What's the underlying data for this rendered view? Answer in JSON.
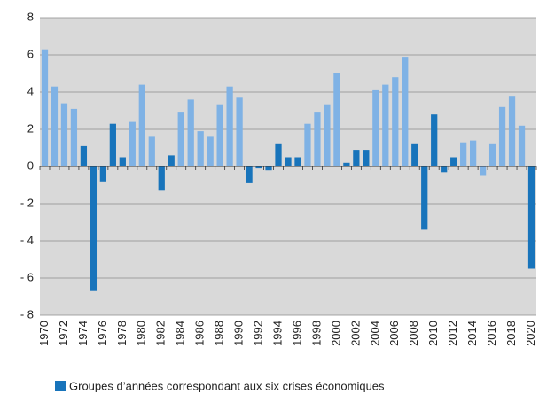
{
  "chart_data": {
    "type": "bar",
    "categories": [
      "1970",
      null,
      "1972",
      null,
      "1974",
      null,
      "1976",
      null,
      "1978",
      null,
      "1980",
      null,
      "1982",
      null,
      "1984",
      null,
      "1986",
      null,
      "1988",
      null,
      "1990",
      null,
      "1992",
      null,
      "1994",
      null,
      "1996",
      null,
      "1998",
      null,
      "2000",
      null,
      "2002",
      null,
      "2004",
      null,
      "2006",
      null,
      "2008",
      null,
      "2010",
      null,
      "2012",
      null,
      "2014",
      null,
      "2016",
      null,
      "2018",
      null,
      "2020"
    ],
    "values": [
      6.3,
      4.3,
      3.4,
      3.1,
      1.1,
      -6.7,
      -0.8,
      2.3,
      0.5,
      2.4,
      4.4,
      1.6,
      -1.3,
      0.6,
      2.9,
      3.6,
      1.9,
      1.6,
      3.3,
      4.3,
      3.7,
      -0.9,
      -0.1,
      -0.2,
      1.2,
      0.5,
      0.5,
      2.3,
      2.9,
      3.3,
      5.0,
      0.2,
      0.9,
      0.9,
      4.1,
      4.4,
      4.8,
      5.9,
      1.2,
      -3.4,
      2.8,
      -0.3,
      0.5,
      1.3,
      1.4,
      -0.5,
      1.2,
      3.2,
      3.8,
      2.2,
      -5.5
    ],
    "crisis": [
      false,
      false,
      false,
      false,
      true,
      true,
      true,
      true,
      true,
      false,
      false,
      false,
      true,
      true,
      false,
      false,
      false,
      false,
      false,
      false,
      false,
      true,
      true,
      true,
      true,
      true,
      true,
      false,
      false,
      false,
      false,
      true,
      true,
      true,
      false,
      false,
      false,
      false,
      true,
      true,
      true,
      true,
      true,
      false,
      false,
      false,
      false,
      false,
      false,
      false,
      true
    ],
    "color": "#7fb2e5",
    "crisis_color": "#1874bb",
    "legend": "Groupes d’années correspondant aux six crises économiques",
    "ylim": [
      -8,
      8
    ],
    "yticks": [
      {
        "value": -8,
        "label": "- 8"
      },
      {
        "value": -6,
        "label": "- 6"
      },
      {
        "value": -4,
        "label": "- 4"
      },
      {
        "value": -2,
        "label": "- 2"
      },
      0,
      2,
      4,
      6,
      8
    ],
    "grid": true
  }
}
